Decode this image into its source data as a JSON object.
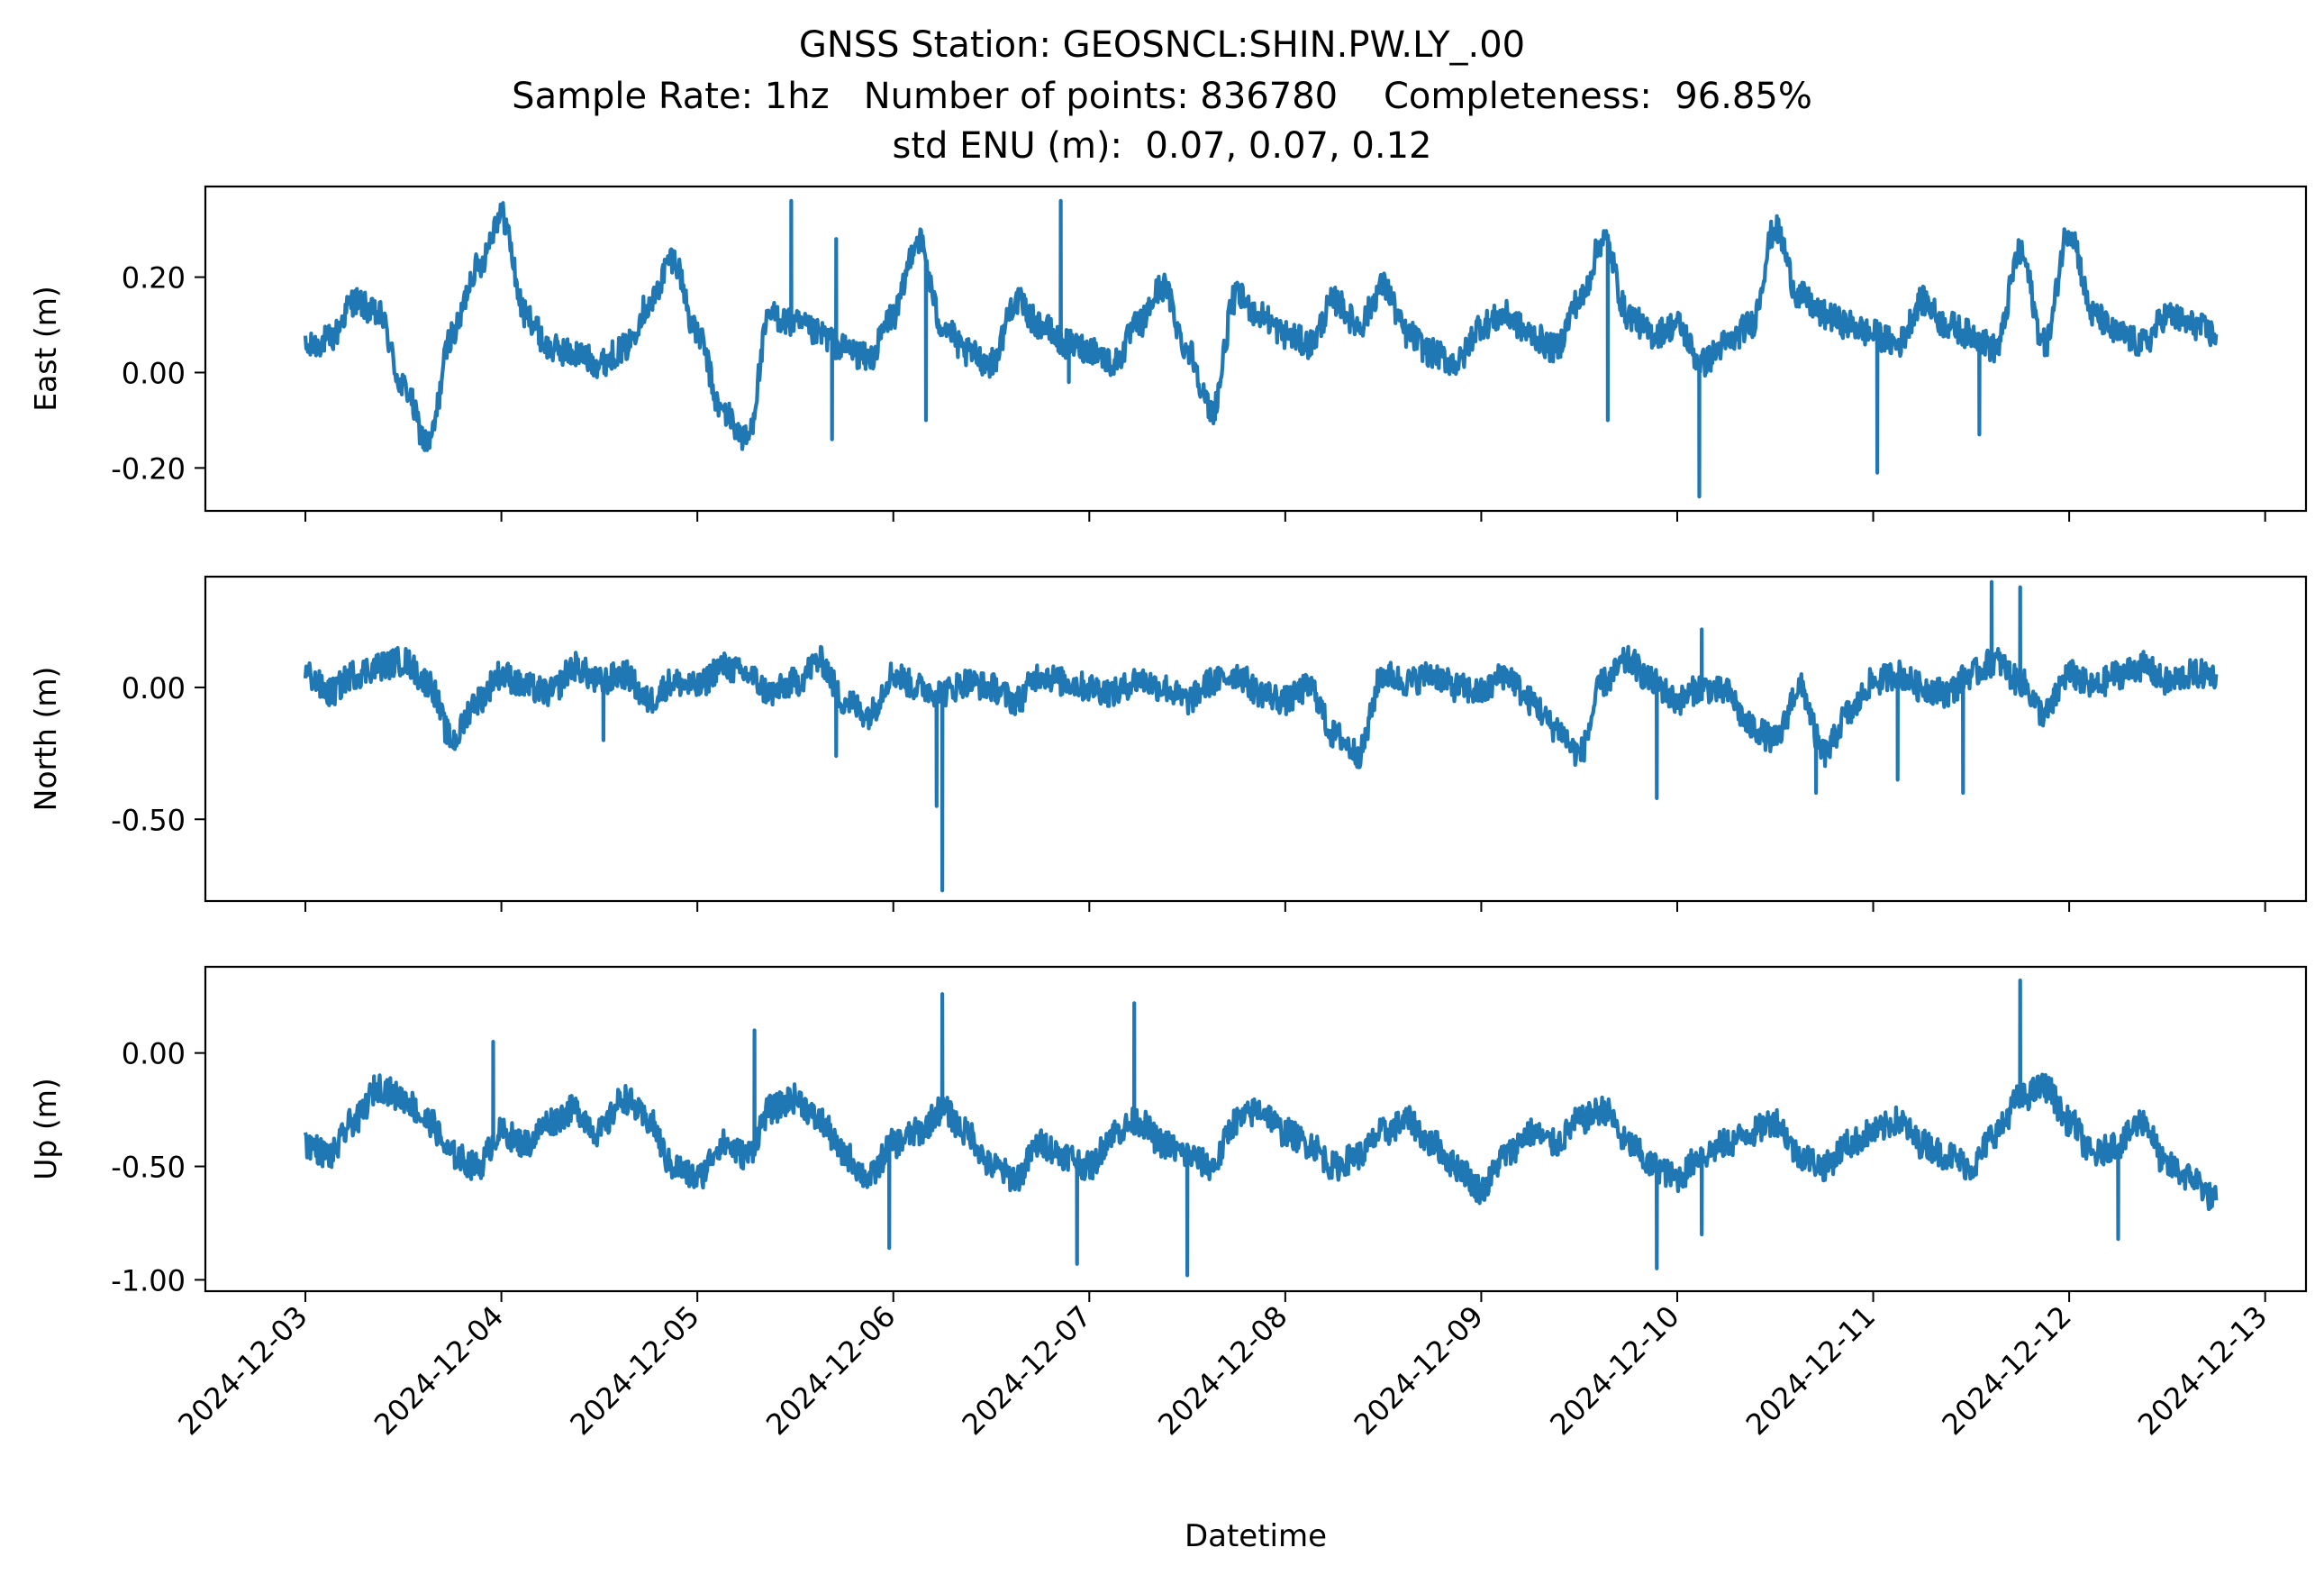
{
  "chart_data": {
    "type": "line",
    "title": [
      "GNSS Station: GEOSNCL:SHIN.PW.LY_.00",
      "Sample Rate: 1hz   Number of points: 836780    Completeness:  96.85%",
      "std ENU (m):  0.07, 0.07, 0.12"
    ],
    "xlabel": "Datetime",
    "x_ticks": [
      "2024-12-03",
      "2024-12-04",
      "2024-12-05",
      "2024-12-06",
      "2024-12-07",
      "2024-12-08",
      "2024-12-09",
      "2024-12-10",
      "2024-12-11",
      "2024-12-12",
      "2024-12-13"
    ],
    "xlim": [
      "2024-12-02T11:45",
      "2024-12-13T05:00"
    ],
    "data_range": [
      "2024-12-03T00:00",
      "2024-12-12T18:00"
    ],
    "line_color": "#1f77b4",
    "panels": [
      {
        "ylabel": "East (m)",
        "ylim": [
          -0.29,
          0.39
        ],
        "y_ticks": [
          0.2,
          0.0,
          -0.2
        ],
        "y_tick_labels": [
          "0.20",
          "0.00",
          "-0.20"
        ],
        "series": [
          {
            "x_hours": [
              0,
              3,
              6,
              9,
              12,
              15,
              18,
              21,
              24,
              27,
              30,
              33,
              36,
              39,
              42,
              45,
              48,
              51,
              54,
              57,
              60,
              63,
              66,
              69,
              72,
              75,
              78,
              81,
              84,
              87,
              90,
              93,
              96,
              99,
              102,
              105,
              108,
              111,
              114,
              117,
              120,
              123,
              126,
              129,
              132,
              135,
              138,
              141,
              144,
              147,
              150,
              153,
              156,
              159,
              162,
              165,
              168,
              171,
              174,
              177,
              180,
              183,
              186,
              189,
              192,
              195,
              198,
              201,
              204,
              207,
              210,
              213,
              216,
              219,
              222,
              225,
              228,
              231,
              234
            ],
            "values": [
              0.05,
              0.07,
              0.15,
              0.12,
              -0.03,
              -0.15,
              0.08,
              0.22,
              0.33,
              0.12,
              0.05,
              0.04,
              0.02,
              0.05,
              0.14,
              0.24,
              0.08,
              -0.08,
              -0.14,
              0.12,
              0.1,
              0.08,
              0.05,
              0.03,
              0.12,
              0.28,
              0.1,
              0.04,
              0.02,
              0.15,
              0.1,
              0.06,
              0.05,
              0.02,
              0.1,
              0.18,
              0.05,
              -0.08,
              0.16,
              0.12,
              0.08,
              0.06,
              0.15,
              0.1,
              0.18,
              0.08,
              0.04,
              0.02,
              0.1,
              0.12,
              0.08,
              0.05,
              0.15,
              0.28,
              0.12,
              0.08,
              0.1,
              0.02,
              0.06,
              0.1,
              0.3,
              0.16,
              0.12,
              0.1,
              0.08,
              0.06,
              0.15,
              0.1,
              0.08,
              0.05,
              0.25,
              0.06,
              0.3,
              0.12,
              0.08,
              0.06,
              0.12,
              0.1,
              0.08
            ],
            "spikes": [
              [
                59.5,
                0.36
              ],
              [
                65.0,
                0.28
              ],
              [
                92.5,
                0.36
              ],
              [
                170.7,
                -0.26
              ],
              [
                192.5,
                -0.21
              ],
              [
                64.5,
                -0.14
              ],
              [
                76.0,
                -0.1
              ],
              [
                93.5,
                -0.02
              ],
              [
                159.5,
                -0.1
              ],
              [
                205.0,
                -0.13
              ]
            ]
          }
        ]
      },
      {
        "ylabel": "North (m)",
        "ylim": [
          -0.81,
          0.42
        ],
        "y_ticks": [
          0.0,
          -0.5
        ],
        "y_tick_labels": [
          "0.00",
          "-0.50"
        ],
        "series": [
          {
            "x_hours": [
              0,
              3,
              6,
              9,
              12,
              15,
              18,
              21,
              24,
              27,
              30,
              33,
              36,
              39,
              42,
              45,
              48,
              51,
              54,
              57,
              60,
              63,
              66,
              69,
              72,
              75,
              78,
              81,
              84,
              87,
              90,
              93,
              96,
              99,
              102,
              105,
              108,
              111,
              114,
              117,
              120,
              123,
              126,
              129,
              132,
              135,
              138,
              141,
              144,
              147,
              150,
              153,
              156,
              159,
              162,
              165,
              168,
              171,
              174,
              177,
              180,
              183,
              186,
              189,
              192,
              195,
              198,
              201,
              204,
              207,
              210,
              213,
              216,
              219,
              222,
              225,
              228,
              231,
              234
            ],
            "values": [
              0.05,
              -0.02,
              0.05,
              0.08,
              0.1,
              0.02,
              -0.2,
              -0.05,
              0.05,
              0.0,
              -0.02,
              0.08,
              0.02,
              0.05,
              -0.05,
              0.02,
              0.0,
              0.08,
              0.05,
              -0.02,
              0.02,
              0.1,
              -0.05,
              -0.1,
              0.05,
              0.0,
              -0.02,
              0.02,
              0.0,
              -0.05,
              0.05,
              0.02,
              0.0,
              -0.02,
              0.03,
              0.0,
              -0.05,
              0.02,
              0.05,
              -0.02,
              -0.05,
              0.0,
              -0.18,
              -0.25,
              0.05,
              0.02,
              0.05,
              0.0,
              -0.02,
              0.05,
              -0.05,
              -0.15,
              -0.25,
              0.02,
              0.1,
              0.02,
              -0.05,
              0.0,
              -0.02,
              -0.15,
              -0.2,
              0.0,
              -0.25,
              -0.1,
              0.02,
              0.05,
              0.0,
              -0.02,
              0.05,
              0.1,
              0.02,
              -0.1,
              0.05,
              0.0,
              0.05,
              0.08,
              0.02,
              0.05,
              0.05
            ],
            "spikes": [
              [
                78.0,
                -0.77
              ],
              [
                77.3,
                -0.45
              ],
              [
                65.0,
                -0.26
              ],
              [
                165.5,
                -0.42
              ],
              [
                185.0,
                -0.4
              ],
              [
                203.0,
                -0.4
              ],
              [
                206.5,
                0.4
              ],
              [
                210.0,
                0.38
              ],
              [
                195.0,
                -0.35
              ],
              [
                171.0,
                0.22
              ],
              [
                36.5,
                -0.2
              ]
            ]
          }
        ]
      },
      {
        "ylabel": "Up (m)",
        "ylim": [
          -1.05,
          0.38
        ],
        "y_ticks": [
          0.0,
          -0.5,
          -1.0
        ],
        "y_tick_labels": [
          "0.00",
          "-0.50",
          "-1.00"
        ],
        "series": [
          {
            "x_hours": [
              0,
              3,
              6,
              9,
              12,
              15,
              18,
              21,
              24,
              27,
              30,
              33,
              36,
              39,
              42,
              45,
              48,
              51,
              54,
              57,
              60,
              63,
              66,
              69,
              72,
              75,
              78,
              81,
              84,
              87,
              90,
              93,
              96,
              99,
              102,
              105,
              108,
              111,
              114,
              117,
              120,
              123,
              126,
              129,
              132,
              135,
              138,
              141,
              144,
              147,
              150,
              153,
              156,
              159,
              162,
              165,
              168,
              171,
              174,
              177,
              180,
              183,
              186,
              189,
              192,
              195,
              198,
              201,
              204,
              207,
              210,
              213,
              216,
              219,
              222,
              225,
              228,
              231,
              234
            ],
            "values": [
              -0.4,
              -0.45,
              -0.3,
              -0.15,
              -0.2,
              -0.3,
              -0.45,
              -0.5,
              -0.35,
              -0.4,
              -0.3,
              -0.25,
              -0.35,
              -0.2,
              -0.3,
              -0.5,
              -0.55,
              -0.4,
              -0.45,
              -0.25,
              -0.2,
              -0.3,
              -0.45,
              -0.55,
              -0.4,
              -0.35,
              -0.25,
              -0.35,
              -0.5,
              -0.55,
              -0.4,
              -0.45,
              -0.5,
              -0.35,
              -0.3,
              -0.4,
              -0.45,
              -0.5,
              -0.3,
              -0.25,
              -0.35,
              -0.4,
              -0.5,
              -0.45,
              -0.35,
              -0.3,
              -0.4,
              -0.5,
              -0.6,
              -0.45,
              -0.35,
              -0.4,
              -0.3,
              -0.25,
              -0.4,
              -0.5,
              -0.55,
              -0.45,
              -0.4,
              -0.35,
              -0.3,
              -0.45,
              -0.5,
              -0.4,
              -0.35,
              -0.3,
              -0.4,
              -0.45,
              -0.5,
              -0.35,
              -0.2,
              -0.15,
              -0.3,
              -0.45,
              -0.4,
              -0.3,
              -0.5,
              -0.55,
              -0.65
            ],
            "spikes": [
              [
                78.0,
                0.26
              ],
              [
                55.0,
                0.1
              ],
              [
                101.5,
                0.22
              ],
              [
                210.0,
                0.32
              ],
              [
                71.5,
                -0.86
              ],
              [
                94.5,
                -0.93
              ],
              [
                108.0,
                -0.98
              ],
              [
                165.5,
                -0.95
              ],
              [
                23.0,
                0.05
              ],
              [
                222.0,
                -0.82
              ],
              [
                171.0,
                -0.8
              ]
            ]
          }
        ]
      }
    ]
  }
}
